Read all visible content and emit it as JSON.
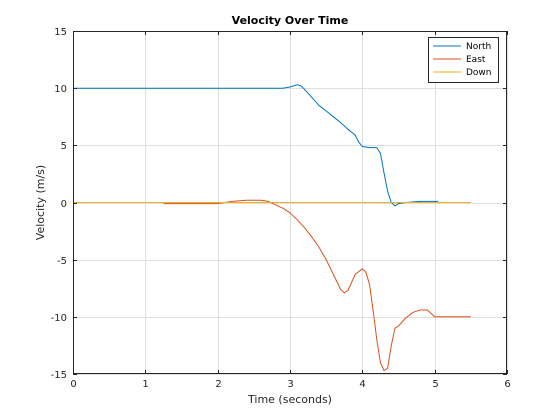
{
  "chart_data": {
    "type": "line",
    "title": "Velocity Over Time",
    "xlabel": "Time (seconds)",
    "ylabel": "Velocity (m/s)",
    "xlim": [
      0,
      6
    ],
    "ylim": [
      -15,
      15
    ],
    "xticks": [
      0,
      1,
      2,
      3,
      4,
      5,
      6
    ],
    "xtick_labels": [
      "0",
      "1",
      "2",
      "3",
      "4",
      "5",
      "6"
    ],
    "yticks": [
      -15,
      -10,
      -5,
      0,
      5,
      10,
      15
    ],
    "ytick_labels": [
      "-15",
      "-10",
      "-5",
      "0",
      "5",
      "10",
      "15"
    ],
    "grid": true,
    "legend_position": "top-right",
    "series": [
      {
        "name": "North",
        "color": "#0072BD",
        "x": [
          0,
          0.5,
          1.0,
          1.5,
          2.0,
          2.5,
          2.9,
          3.0,
          3.05,
          3.1,
          3.15,
          3.2,
          3.3,
          3.4,
          3.5,
          3.6,
          3.7,
          3.8,
          3.9,
          3.95,
          4.0,
          4.1,
          4.2,
          4.25,
          4.3,
          4.35,
          4.4,
          4.45,
          4.5,
          4.6,
          4.8,
          5.05
        ],
        "y": [
          10,
          10,
          10,
          10,
          10,
          10,
          10,
          10.1,
          10.2,
          10.3,
          10.2,
          9.9,
          9.2,
          8.5,
          8.0,
          7.5,
          7.0,
          6.4,
          5.9,
          5.3,
          4.9,
          4.8,
          4.8,
          4.3,
          2.6,
          1.0,
          0.0,
          -0.3,
          -0.1,
          0.0,
          0.1,
          0.1
        ]
      },
      {
        "name": "East",
        "color": "#D95319",
        "x": [
          1.25,
          1.5,
          2.0,
          2.2,
          2.4,
          2.6,
          2.7,
          2.8,
          2.9,
          3.0,
          3.1,
          3.2,
          3.3,
          3.4,
          3.5,
          3.6,
          3.7,
          3.75,
          3.8,
          3.9,
          4.0,
          4.05,
          4.1,
          4.15,
          4.2,
          4.25,
          4.3,
          4.35,
          4.4,
          4.45,
          4.5,
          4.6,
          4.7,
          4.8,
          4.9,
          5.0,
          5.5
        ],
        "y": [
          -0.1,
          -0.1,
          -0.1,
          0.1,
          0.2,
          0.2,
          0.1,
          -0.2,
          -0.5,
          -0.9,
          -1.5,
          -2.2,
          -3.0,
          -3.9,
          -5.0,
          -6.3,
          -7.6,
          -7.9,
          -7.7,
          -6.3,
          -5.8,
          -6.1,
          -7.2,
          -9.5,
          -12.0,
          -14.0,
          -14.7,
          -14.5,
          -12.5,
          -11.0,
          -10.8,
          -10.1,
          -9.6,
          -9.4,
          -9.4,
          -10.0,
          -10.0
        ]
      },
      {
        "name": "Down",
        "color": "#EDB120",
        "x": [
          0,
          5.5
        ],
        "y": [
          0,
          0
        ]
      }
    ]
  }
}
